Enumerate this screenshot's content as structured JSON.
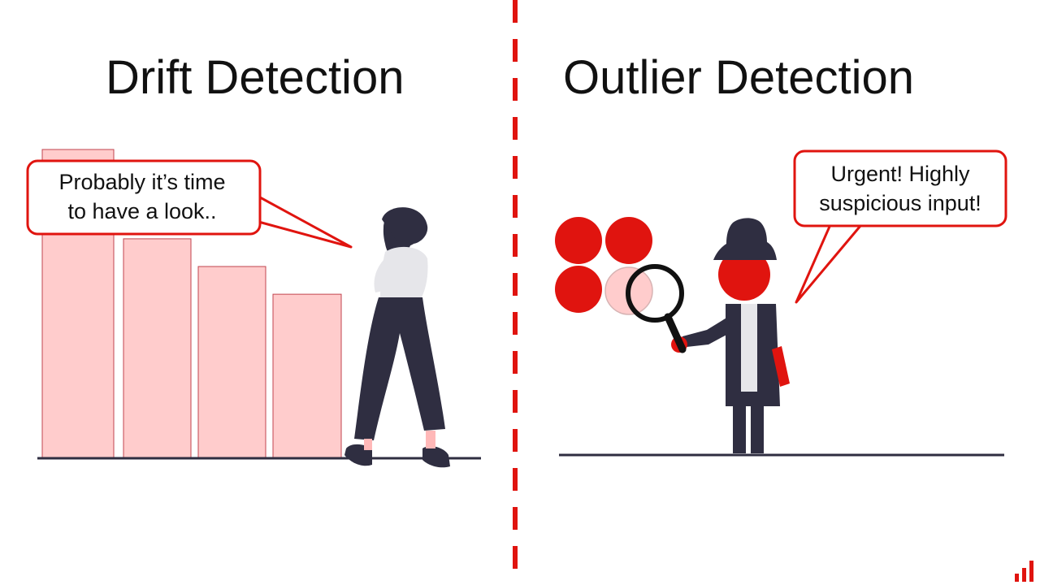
{
  "colors": {
    "accent": "#e0140f",
    "bar_fill": "#ffcccc",
    "bar_stroke": "#c0454f",
    "figure_dark": "#2f2e41"
  },
  "left_panel": {
    "title": "Drift Detection",
    "speech": [
      "Probably it’s time",
      "to have a look.."
    ],
    "chart_data": {
      "type": "bar",
      "categories": [
        "",
        "",
        "",
        ""
      ],
      "values": [
        100,
        71,
        62,
        53
      ],
      "ylim": [
        0,
        100
      ],
      "grid": false
    }
  },
  "right_panel": {
    "title": "Outlier Detection",
    "speech": [
      "Urgent! Highly",
      "suspicious input!"
    ]
  },
  "icons": [
    "person-walking-icon",
    "detective-icon",
    "magnifying-glass-icon",
    "logo-bars-icon"
  ]
}
